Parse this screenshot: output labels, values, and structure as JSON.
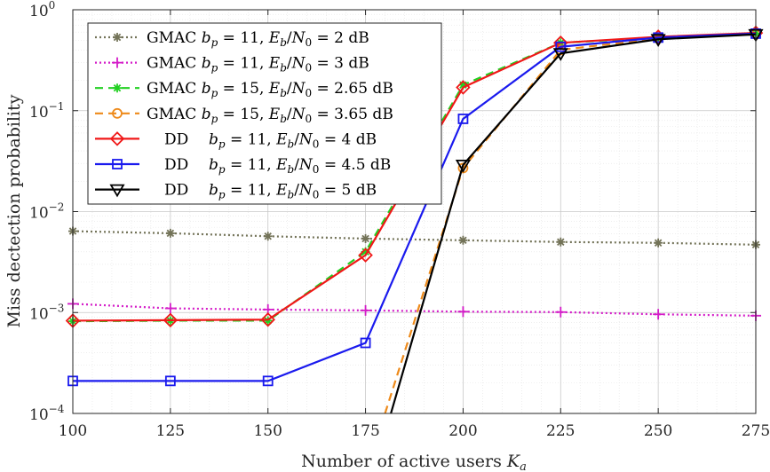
{
  "chart_data": {
    "type": "line",
    "title": "",
    "xlabel": "Number of active users K_a",
    "ylabel": "Miss dectection probability",
    "xlim": [
      100,
      275
    ],
    "ylim": [
      0.0001,
      1
    ],
    "yscale": "log",
    "grid": true,
    "legend_position": "top-left",
    "x_ticks": [
      100,
      125,
      150,
      175,
      200,
      225,
      250,
      275
    ],
    "x_tick_labels": [
      "100",
      "125",
      "150",
      "175",
      "200",
      "225",
      "250",
      "275"
    ],
    "y_tick_labels": [
      {
        "base": "10",
        "exp": "−4"
      },
      {
        "base": "10",
        "exp": "−3"
      },
      {
        "base": "10",
        "exp": "−2"
      },
      {
        "base": "10",
        "exp": "−1"
      },
      {
        "base": "10",
        "exp": "0"
      }
    ],
    "series": [
      {
        "name": "GMAC b_p = 11, E_b/N_0 = 2 dB",
        "legend": {
          "method": "GMAC",
          "bp": "11",
          "ebn0": "2 dB"
        },
        "color": "#737358",
        "dash": "dotted",
        "marker": "asterisk",
        "x": [
          100,
          125,
          150,
          175,
          200,
          225,
          250,
          275
        ],
        "y": [
          0.0064,
          0.0061,
          0.0057,
          0.0054,
          0.0052,
          0.005,
          0.0049,
          0.0047
        ]
      },
      {
        "name": "GMAC b_p = 11, E_b/N_0 = 3 dB",
        "legend": {
          "method": "GMAC",
          "bp": "11",
          "ebn0": "3 dB"
        },
        "color": "#d41cc8",
        "dash": "dotted",
        "marker": "plus",
        "x": [
          100,
          125,
          150,
          175,
          200,
          225,
          250,
          275
        ],
        "y": [
          0.00122,
          0.0011,
          0.00107,
          0.00105,
          0.00102,
          0.00101,
          0.00096,
          0.00093
        ]
      },
      {
        "name": "GMAC b_p = 15, E_b/N_0 = 2.65 dB",
        "legend": {
          "method": "GMAC",
          "bp": "15",
          "ebn0": "2.65 dB"
        },
        "color": "#22d022",
        "dash": "dashed",
        "marker": "asterisk",
        "x": [
          100,
          125,
          150,
          175,
          200,
          225,
          250,
          275
        ],
        "y": [
          0.00082,
          0.00083,
          0.00083,
          0.004,
          0.18,
          0.47,
          0.53,
          0.58
        ]
      },
      {
        "name": "GMAC b_p = 15, E_b/N_0 = 3.65 dB",
        "legend": {
          "method": "GMAC",
          "bp": "15",
          "ebn0": "3.65 dB"
        },
        "color": "#ee8a1a",
        "dash": "dashed",
        "marker": "circle",
        "x": [
          180,
          200,
          225,
          250,
          275
        ],
        "y": [
          0.0001,
          0.027,
          0.4,
          0.52,
          0.57
        ]
      },
      {
        "name": "DD b_p = 11, E_b/N_0 = 4 dB",
        "legend": {
          "method": "DD",
          "bp": "11",
          "ebn0": "4 dB"
        },
        "color": "#f01818",
        "dash": "solid",
        "marker": "diamond",
        "x": [
          100,
          125,
          150,
          175,
          200,
          225,
          250,
          275
        ],
        "y": [
          0.00083,
          0.00084,
          0.00085,
          0.0037,
          0.17,
          0.47,
          0.54,
          0.59
        ]
      },
      {
        "name": "DD b_p = 11, E_b/N_0 = 4.5 dB",
        "legend": {
          "method": "DD",
          "bp": "11",
          "ebn0": "4.5 dB"
        },
        "color": "#1a1aee",
        "dash": "solid",
        "marker": "square",
        "x": [
          100,
          125,
          150,
          175,
          200,
          225,
          250,
          275
        ],
        "y": [
          0.00021,
          0.00021,
          0.00021,
          0.0005,
          0.083,
          0.43,
          0.53,
          0.58
        ]
      },
      {
        "name": "DD b_p = 11, E_b/N_0 = 5 dB",
        "legend": {
          "method": "DD",
          "bp": "11",
          "ebn0": "5 dB"
        },
        "color": "#000000",
        "dash": "solid",
        "marker": "triangle-down",
        "x": [
          181.5,
          200,
          225,
          250,
          275
        ],
        "y": [
          0.0001,
          0.029,
          0.37,
          0.51,
          0.57
        ]
      }
    ]
  }
}
